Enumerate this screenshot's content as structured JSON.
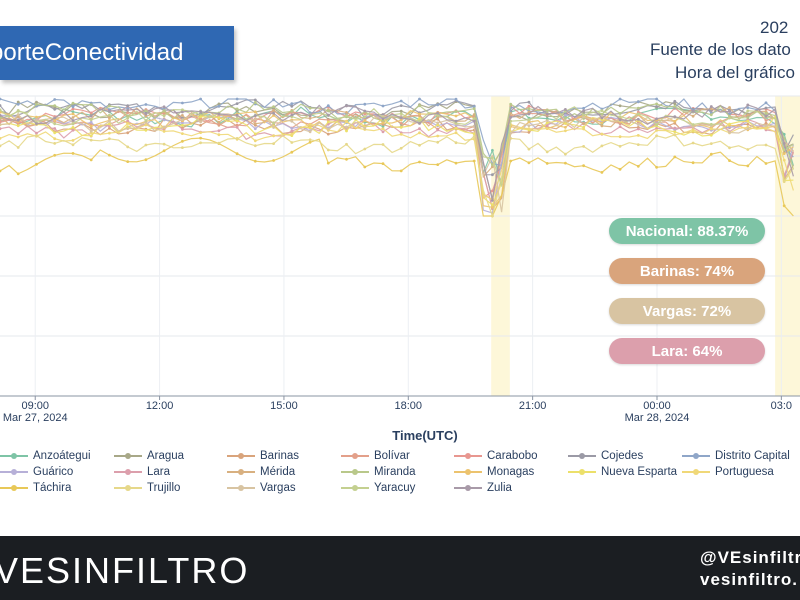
{
  "title": "porteConectividad",
  "info": {
    "year": "202",
    "source": "Fuente de los dato",
    "chart_time": "Hora del gráfico"
  },
  "colors": {
    "banner": "#2f68b3",
    "footer_bg": "#1b1e22",
    "highlight_band": "#fdf7d9"
  },
  "badges": [
    {
      "label": "Nacional: 88.37%",
      "color": "#7ec4a6"
    },
    {
      "label": "Barinas: 74%",
      "color": "#d9a47c"
    },
    {
      "label": "Vargas: 72%",
      "color": "#d8c4a2"
    },
    {
      "label": "Lara: 64%",
      "color": "#dc9fac"
    }
  ],
  "chart_data": {
    "type": "line",
    "xlabel": "Time(UTC)",
    "ylabel": "",
    "x_ticks": [
      {
        "time": "09:00",
        "date": "Mar 27, 2024"
      },
      {
        "time": "12:00",
        "date": ""
      },
      {
        "time": "15:00",
        "date": ""
      },
      {
        "time": "18:00",
        "date": ""
      },
      {
        "time": "21:00",
        "date": ""
      },
      {
        "time": "00:00",
        "date": "Mar 28, 2024"
      },
      {
        "time": "03:0",
        "date": ""
      }
    ],
    "x_range_hours_from_09": [
      -0.85,
      18.45
    ],
    "ylim": [
      0,
      100
    ],
    "grid": true,
    "legend_placement": "bottom",
    "highlight_bands_hours_from_09": [
      [
        11.0,
        11.45
      ],
      [
        17.85,
        18.45
      ]
    ],
    "series": [
      {
        "name": "Anzoátegui",
        "color": "#7ec4a6",
        "base": 93
      },
      {
        "name": "Aragua",
        "color": "#a8a888",
        "base": 95
      },
      {
        "name": "Barinas",
        "color": "#d9a47c",
        "base": 90
      },
      {
        "name": "Bolívar",
        "color": "#e3a08a",
        "base": 92
      },
      {
        "name": "Carabobo",
        "color": "#e89790",
        "base": 94
      },
      {
        "name": "Cojedes",
        "color": "#9b9aa6",
        "base": 96
      },
      {
        "name": "Distrito Capital",
        "color": "#8fa6c8",
        "base": 97
      },
      {
        "name": "Guárico",
        "color": "#b7b0d8",
        "base": 91
      },
      {
        "name": "Lara",
        "color": "#dc9fac",
        "base": 89
      },
      {
        "name": "Mérida",
        "color": "#d8b080",
        "base": 93
      },
      {
        "name": "Miranda",
        "color": "#b9c88a",
        "base": 95
      },
      {
        "name": "Monagas",
        "color": "#ecc36e",
        "base": 92
      },
      {
        "name": "Nueva Esparta",
        "color": "#ece06a",
        "base": 90
      },
      {
        "name": "Portuguesa",
        "color": "#f0d878",
        "base": 88
      },
      {
        "name": "Táchira",
        "color": "#e8c858",
        "base": 78
      },
      {
        "name": "Trujillo",
        "color": "#e6d88a",
        "base": 84
      },
      {
        "name": "Vargas",
        "color": "#d8c4a2",
        "base": 91
      },
      {
        "name": "Yaracuy",
        "color": "#c4d090",
        "base": 93
      },
      {
        "name": "Zulia",
        "color": "#a89aa8",
        "base": 94
      }
    ]
  },
  "footer": {
    "brand": "VESINFILTRO",
    "handle": "@VEsinfiltr",
    "site": "vesinfiltro."
  }
}
